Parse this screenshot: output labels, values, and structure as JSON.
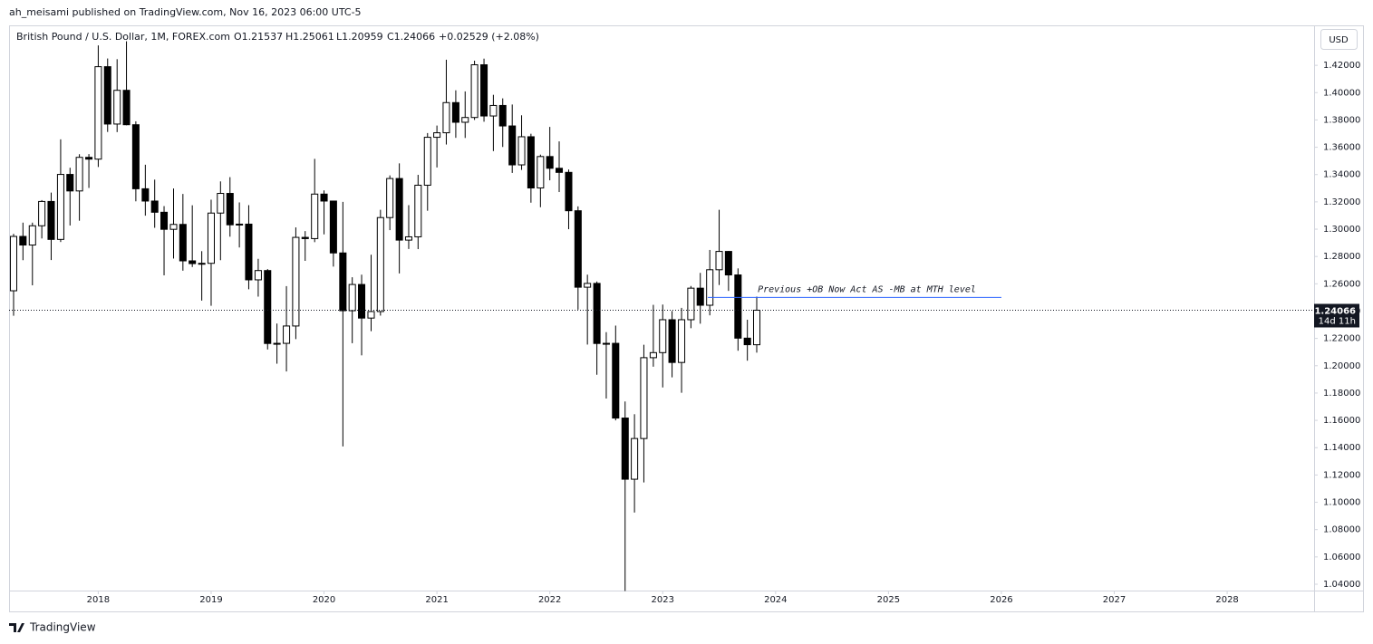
{
  "header": {
    "published": "ah_meisami published on TradingView.com, Nov 16, 2023 06:00 UTC-5"
  },
  "legend": {
    "symbol": "British Pound / U.S. Dollar, 1M, FOREX.com",
    "open": "O1.21537",
    "high": "H1.25061",
    "low": "L1.20959",
    "close": "C1.24066",
    "change": "+0.02529 (+2.08%)"
  },
  "currency": "USD",
  "footer": {
    "brand": "TradingView"
  },
  "chart_data": {
    "type": "candlestick",
    "x": [
      2017.25,
      2017.333,
      2017.417,
      2017.5,
      2017.583,
      2017.667,
      2017.75,
      2017.833,
      2017.917,
      2018.0,
      2018.083,
      2018.167,
      2018.25,
      2018.333,
      2018.417,
      2018.5,
      2018.583,
      2018.667,
      2018.75,
      2018.833,
      2018.917,
      2019.0,
      2019.083,
      2019.167,
      2019.25,
      2019.333,
      2019.417,
      2019.5,
      2019.583,
      2019.667,
      2019.75,
      2019.833,
      2019.917,
      2020.0,
      2020.083,
      2020.167,
      2020.25,
      2020.333,
      2020.417,
      2020.5,
      2020.583,
      2020.667,
      2020.75,
      2020.833,
      2020.917,
      2021.0,
      2021.083,
      2021.167,
      2021.25,
      2021.333,
      2021.417,
      2021.5,
      2021.583,
      2021.667,
      2021.75,
      2021.833,
      2021.917,
      2022.0,
      2022.083,
      2022.167,
      2022.25,
      2022.333,
      2022.417,
      2022.5,
      2022.583,
      2022.667,
      2022.75,
      2022.833,
      2022.917,
      2023.0,
      2023.083,
      2023.167,
      2023.25,
      2023.333,
      2023.417,
      2023.5,
      2023.583,
      2023.667,
      2023.75,
      2023.833
    ],
    "open": [
      1.2549,
      1.2947,
      1.2884,
      1.3025,
      1.3203,
      1.2925,
      1.3401,
      1.328,
      1.3526,
      1.3513,
      1.419,
      1.377,
      1.4017,
      1.3765,
      1.3296,
      1.3206,
      1.3124,
      1.2999,
      1.3035,
      1.2768,
      1.2748,
      1.275,
      1.3118,
      1.3262,
      1.3032,
      1.3037,
      1.2629,
      1.2697,
      1.2163,
      1.2164,
      1.2291,
      1.294,
      1.2931,
      1.3257,
      1.3206,
      1.2826,
      1.2403,
      1.2595,
      1.2349,
      1.2397,
      1.3085,
      1.3371,
      1.292,
      1.2944,
      1.3322,
      1.3673,
      1.3706,
      1.3927,
      1.3783,
      1.3818,
      1.4204,
      1.3829,
      1.3906,
      1.3756,
      1.3471,
      1.3677,
      1.3302,
      1.3532,
      1.3446,
      1.3416,
      1.3135,
      1.2575,
      1.2603,
      1.2163,
      1.2164,
      1.1617,
      1.1169,
      1.1467,
      1.2059,
      1.2096,
      1.2337,
      1.2024,
      1.2337,
      1.2568,
      1.2443,
      1.2703,
      1.2837,
      1.2665,
      1.2202,
      1.21537
    ],
    "high": [
      1.2966,
      1.3048,
      1.3048,
      1.3213,
      1.3268,
      1.3658,
      1.345,
      1.3549,
      1.355,
      1.4346,
      1.425,
      1.4245,
      1.4376,
      1.379,
      1.3472,
      1.3363,
      1.3169,
      1.3298,
      1.3258,
      1.3175,
      1.2839,
      1.3216,
      1.335,
      1.3381,
      1.3196,
      1.3176,
      1.2783,
      1.2708,
      1.2309,
      1.2583,
      1.3013,
      1.2986,
      1.3515,
      1.3284,
      1.32,
      1.32,
      1.2648,
      1.2667,
      1.2813,
      1.3142,
      1.3394,
      1.3482,
      1.3176,
      1.3398,
      1.3704,
      1.3759,
      1.4241,
      1.4017,
      1.4009,
      1.4234,
      1.4249,
      1.3984,
      1.3958,
      1.3913,
      1.3834,
      1.3699,
      1.3546,
      1.3749,
      1.3643,
      1.3437,
      1.3167,
      1.2667,
      1.2617,
      1.2246,
      1.2294,
      1.1738,
      1.1645,
      1.2154,
      1.2446,
      1.2448,
      1.2401,
      1.2424,
      1.2584,
      1.268,
      1.2848,
      1.3142,
      1.2841,
      1.2713,
      1.2337,
      1.25061
    ],
    "low": [
      1.2366,
      1.2773,
      1.2589,
      1.2932,
      1.2774,
      1.2906,
      1.3027,
      1.3062,
      1.3302,
      1.3455,
      1.3712,
      1.3711,
      1.3761,
      1.3204,
      1.3099,
      1.301,
      1.2662,
      1.2785,
      1.2696,
      1.2723,
      1.2477,
      1.2439,
      1.2773,
      1.2945,
      1.2866,
      1.256,
      1.2506,
      1.2119,
      1.2015,
      1.1958,
      1.2195,
      1.2768,
      1.2905,
      1.2962,
      1.2726,
      1.1409,
      1.2165,
      1.2076,
      1.2253,
      1.2367,
      1.2993,
      1.2676,
      1.2855,
      1.2854,
      1.3135,
      1.3452,
      1.362,
      1.3669,
      1.3668,
      1.38,
      1.3787,
      1.3572,
      1.3602,
      1.3412,
      1.3434,
      1.3194,
      1.3161,
      1.3358,
      1.3272,
      1.3,
      1.2411,
      1.2155,
      1.1934,
      1.176,
      1.16,
      1.035,
      1.0925,
      1.1145,
      1.1993,
      1.1841,
      1.1915,
      1.1802,
      1.2275,
      1.2308,
      1.2369,
      1.2591,
      1.2548,
      1.211,
      1.2037,
      1.20959
    ],
    "close": [
      1.2947,
      1.2884,
      1.3025,
      1.3203,
      1.2925,
      1.3401,
      1.328,
      1.3526,
      1.3513,
      1.419,
      1.377,
      1.4017,
      1.3765,
      1.3296,
      1.3206,
      1.3124,
      1.2999,
      1.3035,
      1.2768,
      1.2748,
      1.275,
      1.3118,
      1.3262,
      1.3032,
      1.3037,
      1.2629,
      1.2697,
      1.2163,
      1.2164,
      1.2291,
      1.294,
      1.2931,
      1.3257,
      1.3206,
      1.2826,
      1.2403,
      1.2595,
      1.2349,
      1.2397,
      1.3085,
      1.3371,
      1.292,
      1.2944,
      1.3322,
      1.3673,
      1.3706,
      1.3927,
      1.3783,
      1.3818,
      1.4204,
      1.3829,
      1.3906,
      1.3756,
      1.3471,
      1.3677,
      1.3302,
      1.3532,
      1.3446,
      1.3416,
      1.3135,
      1.2575,
      1.2603,
      1.2163,
      1.2164,
      1.1617,
      1.1169,
      1.1467,
      1.2059,
      1.2096,
      1.2337,
      1.2024,
      1.2337,
      1.2568,
      1.2443,
      1.2703,
      1.2837,
      1.2665,
      1.2202,
      1.2154,
      1.24066
    ],
    "up_color": "#ffffff",
    "down_color": "#000000",
    "border_color": "#000000",
    "xlim": [
      2017.21,
      2028.77
    ],
    "ylim": [
      1.0201,
      1.4486
    ],
    "xticks": [
      2018,
      2019,
      2020,
      2021,
      2022,
      2023,
      2024,
      2025,
      2026,
      2027,
      2028
    ],
    "yticks": [
      {
        "value": 1.04,
        "label": "1.04000"
      },
      {
        "value": 1.06,
        "label": "1.06000"
      },
      {
        "value": 1.08,
        "label": "1.08000"
      },
      {
        "value": 1.1,
        "label": "1.10000"
      },
      {
        "value": 1.12,
        "label": "1.12000"
      },
      {
        "value": 1.14,
        "label": "1.14000"
      },
      {
        "value": 1.16,
        "label": "1.16000"
      },
      {
        "value": 1.18,
        "label": "1.18000"
      },
      {
        "value": 1.2,
        "label": "1.20000"
      },
      {
        "value": 1.22,
        "label": "1.22000"
      },
      {
        "value": 1.24,
        "label": "1.24000"
      },
      {
        "value": 1.26,
        "label": "1.26000"
      },
      {
        "value": 1.28,
        "label": "1.28000"
      },
      {
        "value": 1.3,
        "label": "1.30000"
      },
      {
        "value": 1.32,
        "label": "1.32000"
      },
      {
        "value": 1.34,
        "label": "1.34000"
      },
      {
        "value": 1.36,
        "label": "1.36000"
      },
      {
        "value": 1.38,
        "label": "1.38000"
      },
      {
        "value": 1.4,
        "label": "1.40000"
      },
      {
        "value": 1.42,
        "label": "1.42000"
      }
    ],
    "grid": false,
    "last_price": 1.24066,
    "countdown": "14d 11h",
    "annotation": {
      "text": "Previous +OB Now Act AS -MB at MTH level",
      "level": 1.25,
      "x_start": 2023.4,
      "x_end": 2026.0,
      "color": "#2962ff"
    }
  }
}
